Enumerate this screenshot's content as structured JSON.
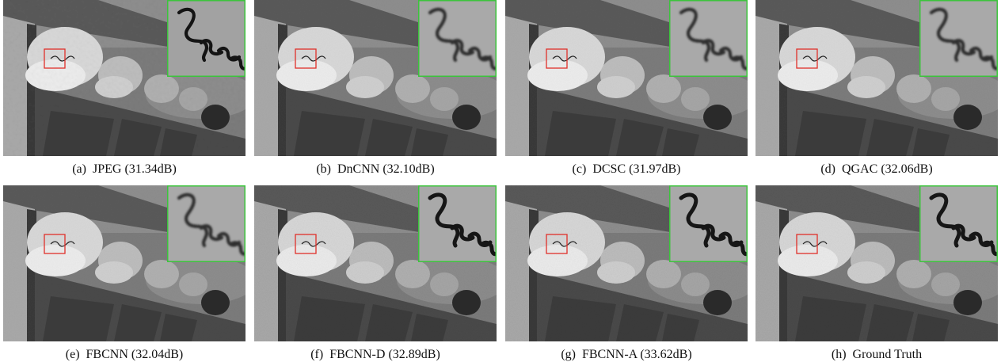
{
  "figure": {
    "panels": [
      {
        "label": "(a)",
        "method": "JPEG",
        "score": "(31.34dB)",
        "quality": "blocky"
      },
      {
        "label": "(b)",
        "method": "DnCNN",
        "score": "(32.10dB)",
        "quality": "smooth"
      },
      {
        "label": "(c)",
        "method": "DCSC",
        "score": "(31.97dB)",
        "quality": "smooth"
      },
      {
        "label": "(d)",
        "method": "QGAC",
        "score": "(32.06dB)",
        "quality": "smooth"
      },
      {
        "label": "(e)",
        "method": "FBCNN",
        "score": "(32.04dB)",
        "quality": "smooth"
      },
      {
        "label": "(f)",
        "method": "FBCNN-D",
        "score": "(32.89dB)",
        "quality": "sharp"
      },
      {
        "label": "(g)",
        "method": "FBCNN-A",
        "score": "(33.62dB)",
        "quality": "sharp"
      },
      {
        "label": "(h)",
        "method": "Ground Truth",
        "score": "",
        "quality": "sharp"
      }
    ],
    "colors": {
      "roi_box": "#e0302a",
      "inset_border": "#3cc43c",
      "caption_text": "#111111"
    }
  }
}
